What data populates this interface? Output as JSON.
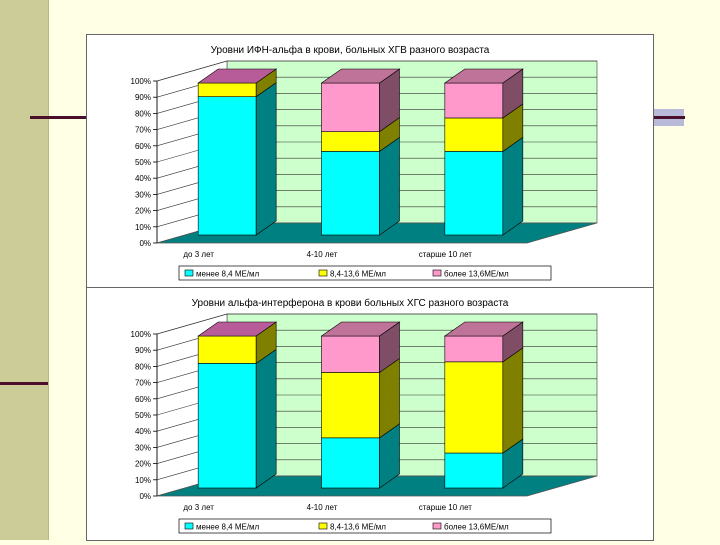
{
  "chart_data": [
    {
      "type": "bar",
      "stacked": true,
      "percent": true,
      "title": "Уровни ИФН-альфа в крови, больных ХГВ разного возраста",
      "categories": [
        "до 3 лет",
        "4-10 лет",
        "старше 10 лет"
      ],
      "series": [
        {
          "name": "менее 8,4 МЕ/мл",
          "values": [
            91,
            55,
            55
          ],
          "color": "#00ffff"
        },
        {
          "name": "8,4-13,6 МЕ/мл",
          "values": [
            9,
            13,
            22
          ],
          "color": "#ffff00"
        },
        {
          "name": "более 13,6МЕ/мл",
          "values": [
            0,
            32,
            23
          ],
          "color": "#ff99cc"
        }
      ],
      "yticks": [
        "0%",
        "10%",
        "20%",
        "30%",
        "40%",
        "50%",
        "60%",
        "70%",
        "80%",
        "90%",
        "100%"
      ],
      "ylim": [
        0,
        100
      ],
      "grid": true,
      "legend": "bottom"
    },
    {
      "type": "bar",
      "stacked": true,
      "percent": true,
      "title": "Уровни альфа-интерферона в крови  больных ХГС разного возраста",
      "categories": [
        "до 3 лет",
        "4-10 лет",
        "старше 10 лет"
      ],
      "series": [
        {
          "name": "менее 8,4 МЕ/мл",
          "values": [
            82,
            33,
            23
          ],
          "color": "#00ffff"
        },
        {
          "name": "8,4-13,6 МЕ/мл",
          "values": [
            18,
            43,
            60
          ],
          "color": "#ffff00"
        },
        {
          "name": "более 13,6МЕ/мл",
          "values": [
            0,
            24,
            17
          ],
          "color": "#ff99cc"
        }
      ],
      "yticks": [
        "0%",
        "10%",
        "20%",
        "30%",
        "40%",
        "50%",
        "60%",
        "70%",
        "80%",
        "90%",
        "100%"
      ],
      "ylim": [
        0,
        100
      ],
      "grid": true,
      "legend": "bottom"
    }
  ]
}
